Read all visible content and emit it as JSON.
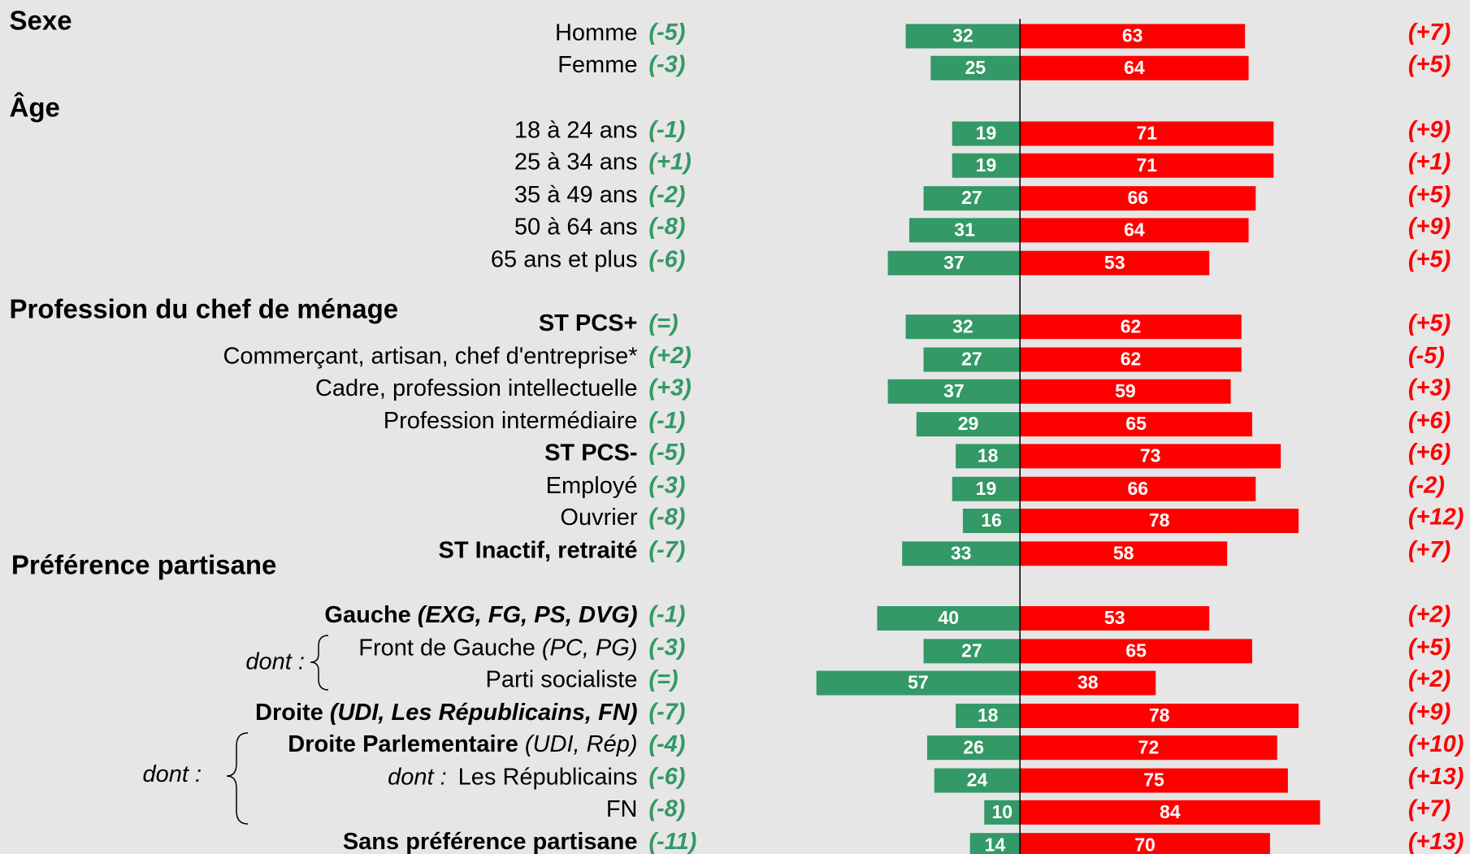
{
  "chart_data": {
    "type": "diverging_bar",
    "headings": [
      "Sexe",
      "Âge",
      "Profession du chef de ménage",
      "Préférence partisane"
    ],
    "annotations": [
      "dont :",
      "dont :"
    ],
    "rows": [
      {
        "label": "Homme"
      },
      {
        "label": "Femme"
      },
      {
        "label": "18 à 24 ans"
      },
      {
        "label": "25 à 34 ans"
      },
      {
        "label": "35 à 49 ans"
      },
      {
        "label": "50 à 64 ans"
      },
      {
        "label": "65 ans et plus"
      },
      {
        "label": "ST PCS+",
        "bold": true
      },
      {
        "label": "Commerçant, artisan, chef d'entreprise*"
      },
      {
        "label": "Cadre, profession intellectuelle"
      },
      {
        "label": "Profession intermédiaire"
      },
      {
        "label": "ST PCS-",
        "bold": true
      },
      {
        "label": "Employé"
      },
      {
        "label": "Ouvrier"
      },
      {
        "label": "ST Inactif, retraité",
        "bold": true
      },
      {
        "label": "Gauche",
        "detail": "(EXG, FG, PS, DVG)",
        "bold": true,
        "bold_detail": true
      },
      {
        "label": "Front de Gauche",
        "detail": "(PC, PG)"
      },
      {
        "label": "Parti socialiste"
      },
      {
        "label": "Droite",
        "detail": "(UDI, Les Républicains, FN)",
        "bold": true,
        "bold_detail": true
      },
      {
        "label": "Droite Parlementaire",
        "detail": "(UDI, Rép)",
        "bold": true
      },
      {
        "label": "Les Républicains",
        "prefix": "dont :"
      },
      {
        "label": "FN"
      },
      {
        "label": "Sans préférence partisane",
        "bold": true
      }
    ],
    "series": [
      {
        "color": "#339966",
        "change_color": "#339966",
        "side": "left",
        "values": [
          32,
          25,
          19,
          19,
          27,
          31,
          37,
          32,
          27,
          37,
          29,
          18,
          19,
          16,
          33,
          40,
          27,
          57,
          18,
          26,
          24,
          10,
          14
        ],
        "changes": [
          "(-5)",
          "(-3)",
          "(-1)",
          "(+1)",
          "(-2)",
          "(-8)",
          "(-6)",
          "(=)",
          "(+2)",
          "(+3)",
          "(-1)",
          "(-5)",
          "(-3)",
          "(-8)",
          "(-7)",
          "(-1)",
          "(-3)",
          "(=)",
          "(-7)",
          "(-4)",
          "(-6)",
          "(-8)",
          "(-11)"
        ]
      },
      {
        "color": "#ff0000",
        "change_color": "#ff0000",
        "side": "right",
        "values": [
          63,
          64,
          71,
          71,
          66,
          64,
          53,
          62,
          62,
          59,
          65,
          73,
          66,
          78,
          58,
          53,
          65,
          38,
          78,
          72,
          75,
          84,
          70
        ],
        "changes": [
          "(+7)",
          "(+5)",
          "(+9)",
          "(+1)",
          "(+5)",
          "(+9)",
          "(+5)",
          "(+5)",
          "(-5)",
          "(+3)",
          "(+6)",
          "(+6)",
          "(-2)",
          "(+12)",
          "(+7)",
          "(+2)",
          "(+5)",
          "(+2)",
          "(+9)",
          "(+10)",
          "(+13)",
          "(+7)",
          "(+13)"
        ]
      }
    ]
  }
}
